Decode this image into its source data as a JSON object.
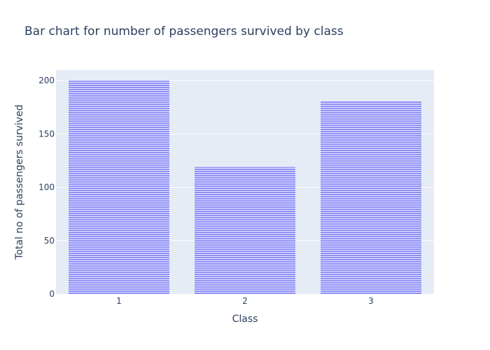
{
  "chart_data": {
    "type": "bar",
    "title": "Bar chart for number of passengers survived by class",
    "xlabel": "Class",
    "ylabel": "Total no of passengers survived",
    "categories": [
      "1",
      "2",
      "3"
    ],
    "values": [
      200,
      119,
      181
    ],
    "ylim": [
      0,
      210
    ],
    "yticks": [
      0,
      50,
      100,
      150,
      200
    ],
    "ytick_labels": [
      "0",
      "50",
      "100",
      "150",
      "200"
    ],
    "grid": true,
    "colors": {
      "bar_fill": "#8f8ff7",
      "bar_line": "#e8e8ff",
      "plot_bg": "#e5ecf6",
      "grid": "#ffffff",
      "text": "#2a3f5f"
    }
  }
}
